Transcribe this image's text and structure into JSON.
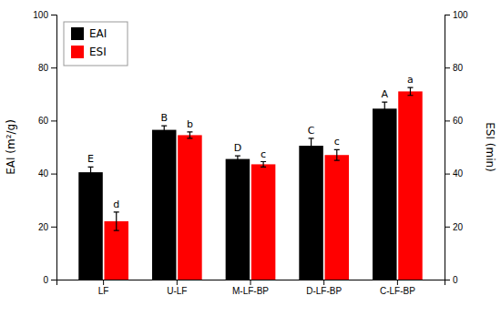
{
  "chart_data": {
    "type": "bar",
    "categories": [
      "LF",
      "U-LF",
      "M-LF-BP",
      "D-LF-BP",
      "C-LF-BP"
    ],
    "series": [
      {
        "name": "EAI",
        "color": "#000000",
        "values": [
          40.5,
          56.5,
          45.5,
          50.5,
          64.5
        ],
        "errors": [
          2.0,
          1.5,
          1.2,
          2.8,
          2.5
        ],
        "annotations": [
          "E",
          "B",
          "D",
          "C",
          "A"
        ]
      },
      {
        "name": "ESI",
        "color": "#ff0000",
        "axis": "y2",
        "values": [
          22.0,
          54.5,
          43.5,
          47.0,
          71.0
        ],
        "errors": [
          3.5,
          1.2,
          1.0,
          2.0,
          1.5
        ],
        "annotations": [
          "d",
          "b",
          "c",
          "c",
          "a"
        ]
      }
    ],
    "ylabel": "EAI (m²/g)",
    "y2label": "ESI (min)",
    "ylim": [
      0,
      100
    ],
    "yticks": [
      0,
      20,
      40,
      60,
      80,
      100
    ],
    "y2lim": [
      0,
      100
    ],
    "y2ticks": [
      0,
      20,
      40,
      60,
      80,
      100
    ],
    "grid": false,
    "legend": "upper left"
  }
}
